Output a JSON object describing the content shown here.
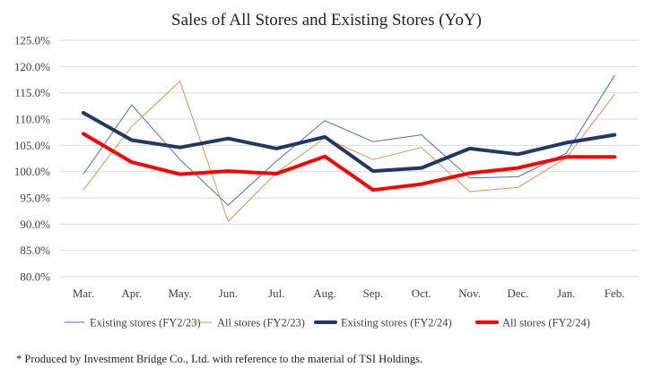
{
  "chart_data": {
    "type": "line",
    "title": "Sales of All Stores and Existing Stores (YoY)",
    "xlabel": "",
    "ylabel": "",
    "categories": [
      "Mar.",
      "Apr.",
      "May.",
      "Jun.",
      "Jul.",
      "Aug.",
      "Sep.",
      "Oct.",
      "Nov.",
      "Dec.",
      "Jan.",
      "Feb."
    ],
    "ylim": [
      80.0,
      125.0
    ],
    "yticks": [
      125.0,
      120.0,
      115.0,
      110.0,
      105.0,
      100.0,
      95.0,
      90.0,
      85.0,
      80.0
    ],
    "ytick_labels": [
      "125.0%",
      "120.0%",
      "115.0%",
      "110.0%",
      "105.0%",
      "100.0%",
      "95.0%",
      "90.0%",
      "85.0%",
      "80.0%"
    ],
    "grid": "horizontal",
    "legend_position": "bottom",
    "series": [
      {
        "name": "Existing stores (FY2/23)",
        "color": "#4a6fb5",
        "width": 1,
        "values": [
          99.5,
          112.7,
          102.3,
          93.6,
          102.0,
          109.7,
          105.7,
          107.0,
          98.8,
          99.0,
          103.5,
          118.3
        ]
      },
      {
        "name": "All stores (FY2/23)",
        "color": "#ec8e4a",
        "width": 1,
        "values": [
          96.5,
          108.6,
          117.2,
          90.5,
          99.8,
          106.4,
          102.3,
          104.6,
          96.2,
          97.0,
          102.6,
          114.7
        ]
      },
      {
        "name": "Existing stores (FY2/24)",
        "color": "#1f3864",
        "width": 4,
        "values": [
          111.2,
          106.0,
          104.6,
          106.3,
          104.4,
          106.6,
          100.1,
          100.7,
          104.4,
          103.3,
          105.5,
          107.0
        ]
      },
      {
        "name": "All stores (FY2/24)",
        "color": "#ff0000",
        "width": 4,
        "values": [
          107.2,
          101.8,
          99.5,
          100.1,
          99.6,
          102.9,
          96.5,
          97.6,
          99.7,
          100.7,
          102.8,
          102.8
        ]
      }
    ]
  },
  "footnote": "* Produced by Investment Bridge Co., Ltd. with reference to the material of TSI Holdings."
}
